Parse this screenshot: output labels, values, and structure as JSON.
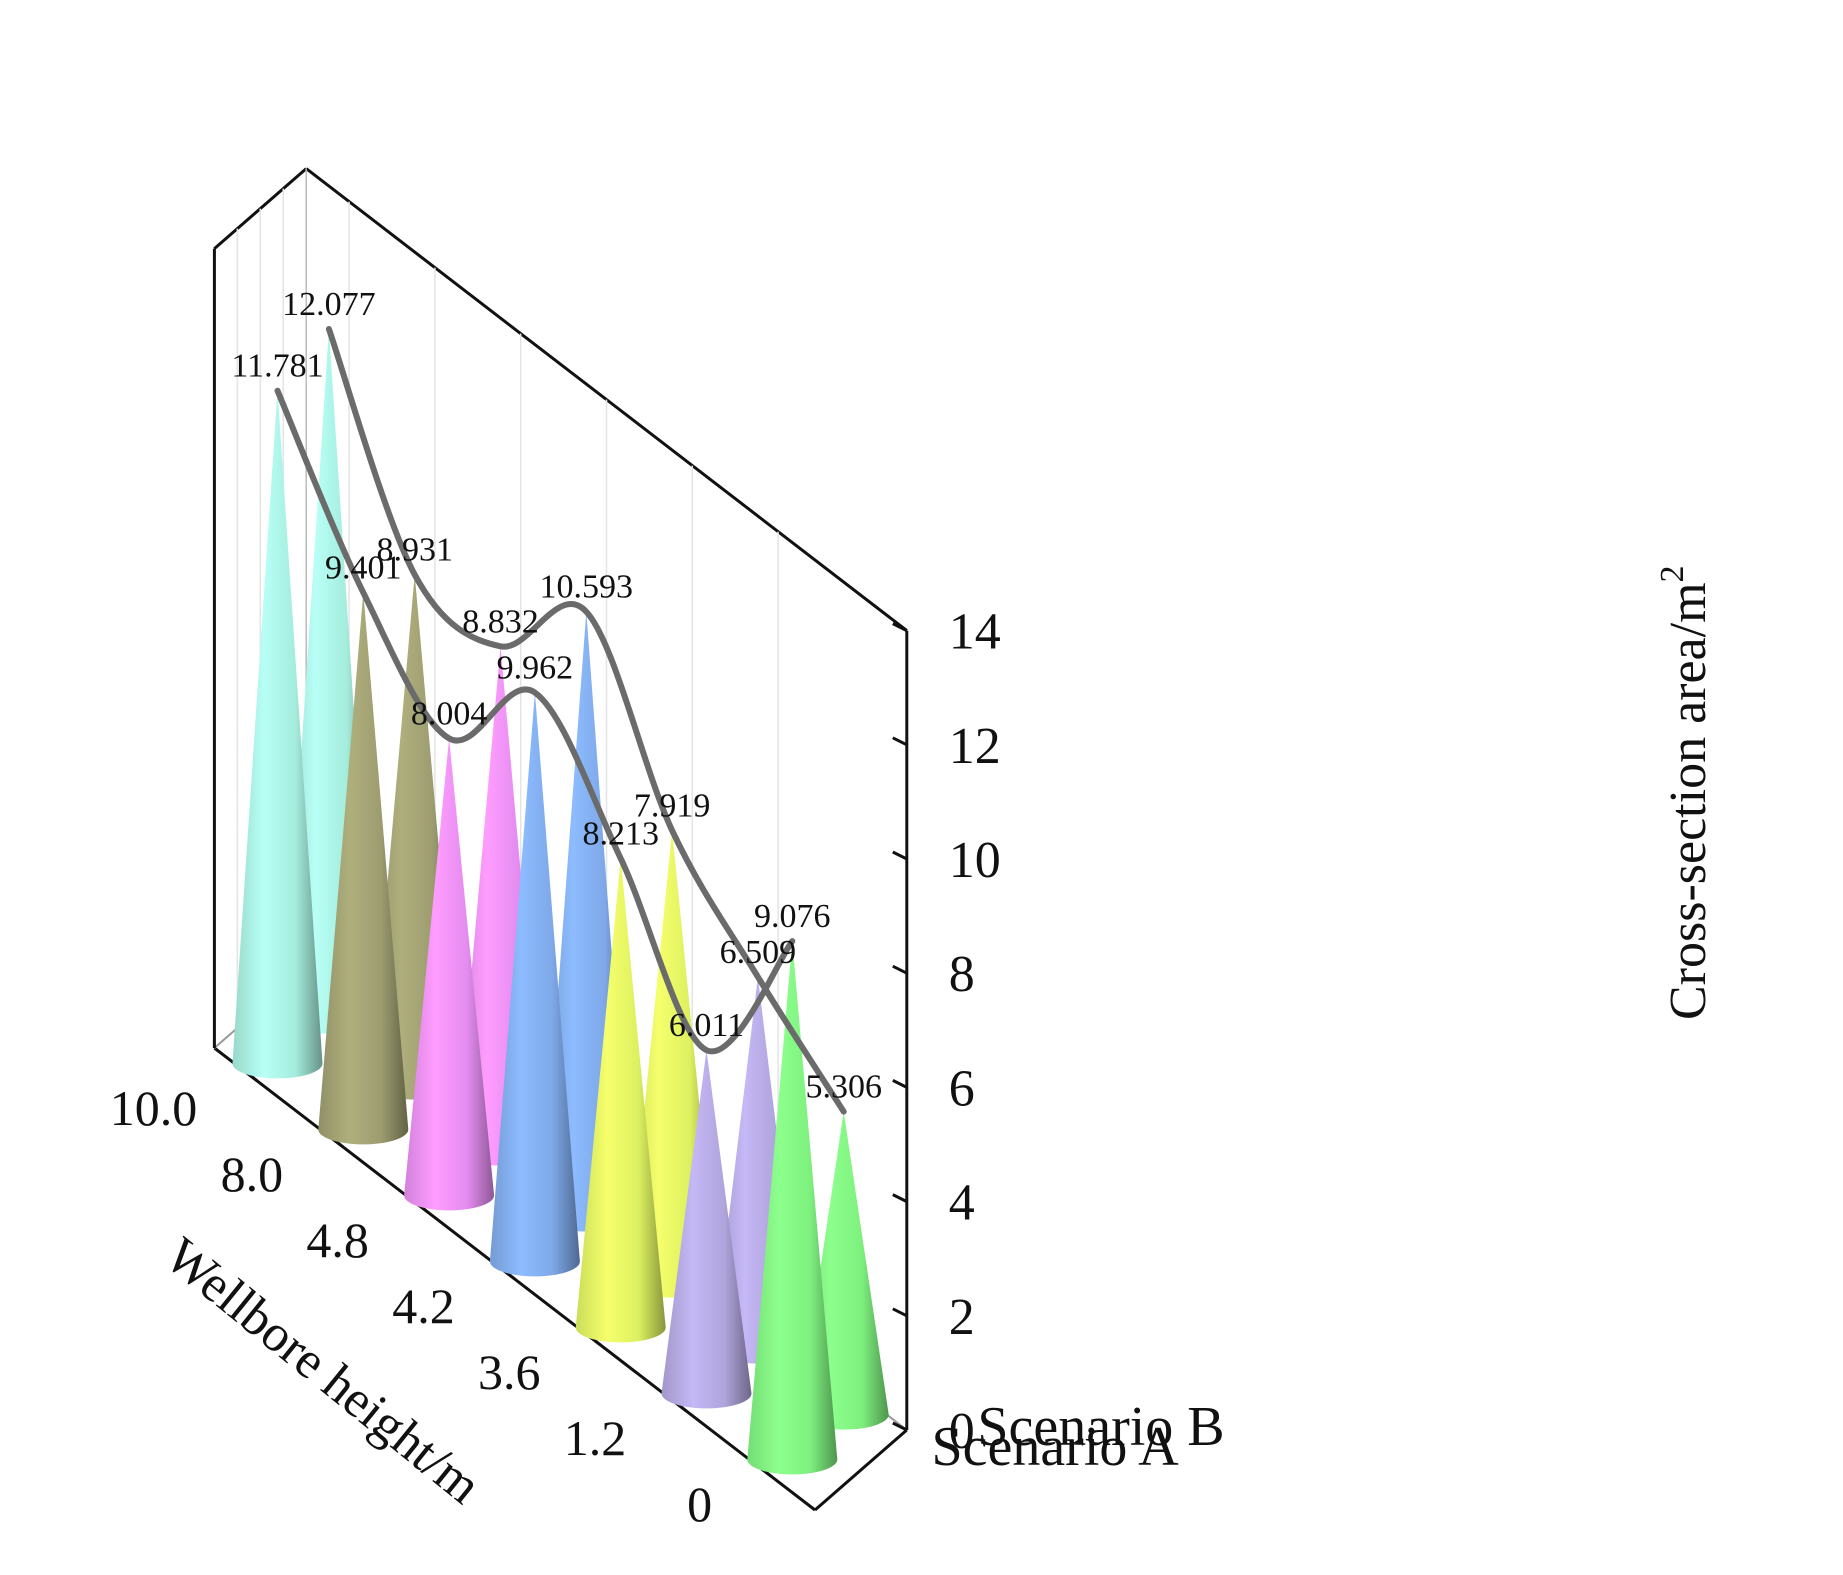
{
  "chart_data": {
    "type": "bar",
    "subtype": "3d-cone",
    "title": "",
    "categories": [
      "0",
      "1.2",
      "3.6",
      "4.2",
      "4.8",
      "8.0",
      "10.0"
    ],
    "series": [
      {
        "name": "Scenario A",
        "values": [
          9.076,
          6.011,
          8.213,
          9.962,
          8.004,
          9.401,
          11.781
        ]
      },
      {
        "name": "Scenario B",
        "values": [
          5.306,
          6.509,
          7.919,
          10.593,
          8.832,
          8.931,
          12.077
        ]
      }
    ],
    "data_labels": {
      "A": [
        "9.076",
        "6.011",
        "8.213",
        "9.962",
        "8.004",
        "9.401",
        "11.781"
      ],
      "B": [
        "5.306",
        "6.509",
        "7.919",
        "10.593",
        "8.832",
        "8.931",
        "12.077"
      ]
    },
    "zlabel": "Cross-section area/m",
    "zlabel_superscript": "2",
    "xlabel": "Wellbore height/m",
    "zlim": [
      0,
      14
    ],
    "zticks": [
      "0",
      "2",
      "4",
      "6",
      "8",
      "10",
      "12",
      "14"
    ],
    "cone_colors": [
      "#7ef07e",
      "#b0a4dc",
      "#dcf060",
      "#7ea8e8",
      "#e48cf0",
      "#9c9c70",
      "#a4ecdc"
    ],
    "line_color": "#6b6b6b"
  }
}
